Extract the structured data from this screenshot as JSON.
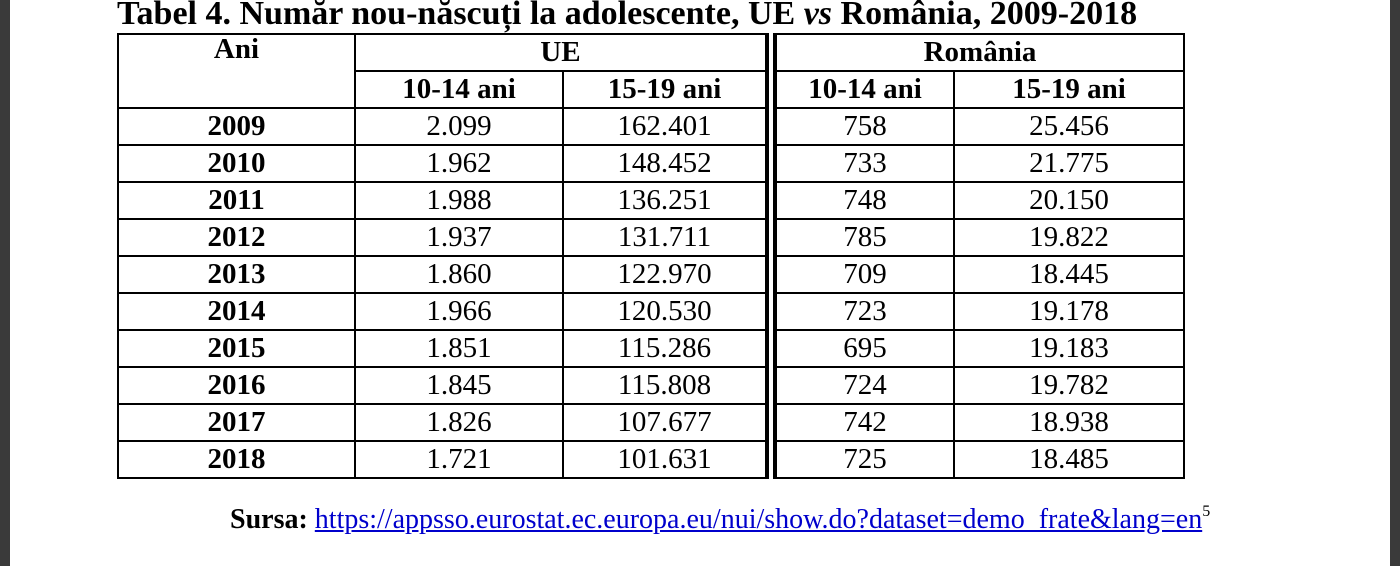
{
  "title": {
    "prefix": "Tabel 4. Număr nou-născuți la adolescente, UE ",
    "vs": "vs",
    "suffix": " România, 2009-2018"
  },
  "table": {
    "col_year": "Ani",
    "group_ue": "UE",
    "group_ro": "România",
    "age_a": "10-14 ani",
    "age_b": "15-19 ani",
    "rows": [
      {
        "year": "2009",
        "ue_a": "2.099",
        "ue_b": "162.401",
        "ro_a": "758",
        "ro_b": "25.456"
      },
      {
        "year": "2010",
        "ue_a": "1.962",
        "ue_b": "148.452",
        "ro_a": "733",
        "ro_b": "21.775"
      },
      {
        "year": "2011",
        "ue_a": "1.988",
        "ue_b": "136.251",
        "ro_a": "748",
        "ro_b": "20.150"
      },
      {
        "year": "2012",
        "ue_a": "1.937",
        "ue_b": "131.711",
        "ro_a": "785",
        "ro_b": "19.822"
      },
      {
        "year": "2013",
        "ue_a": "1.860",
        "ue_b": "122.970",
        "ro_a": "709",
        "ro_b": "18.445"
      },
      {
        "year": "2014",
        "ue_a": "1.966",
        "ue_b": "120.530",
        "ro_a": "723",
        "ro_b": "19.178"
      },
      {
        "year": "2015",
        "ue_a": "1.851",
        "ue_b": "115.286",
        "ro_a": "695",
        "ro_b": "19.183"
      },
      {
        "year": "2016",
        "ue_a": "1.845",
        "ue_b": "115.808",
        "ro_a": "724",
        "ro_b": "19.782"
      },
      {
        "year": "2017",
        "ue_a": "1.826",
        "ue_b": "107.677",
        "ro_a": "742",
        "ro_b": "18.938"
      },
      {
        "year": "2018",
        "ue_a": "1.721",
        "ue_b": "101.631",
        "ro_a": "725",
        "ro_b": "18.485"
      }
    ]
  },
  "source": {
    "label": "Sursa:",
    "url": "https://appsso.eurostat.ec.europa.eu/nui/show.do?dataset=demo_frate&lang=en",
    "footnote": "5"
  }
}
